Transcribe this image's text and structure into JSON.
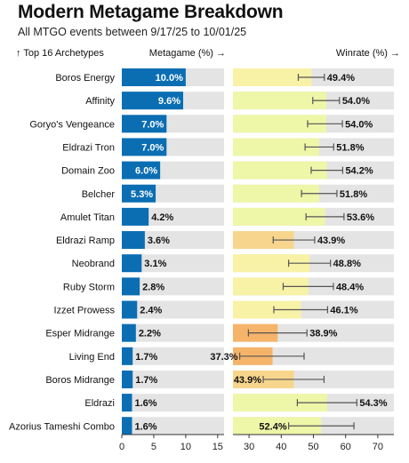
{
  "title": "Modern Metagame Breakdown",
  "subtitle": "All MTGO events between 9/17/25 to 10/01/25",
  "headers": {
    "archetypes": "↑ Top 16 Archetypes",
    "metagame": "Metagame (%) →",
    "winrate": "Winrate (%) →"
  },
  "colors": {
    "meta_bar": "#0b6eb3",
    "track": "#e4e4e4",
    "win_high": "#eef6a8",
    "win_mid": "#f8f2a6",
    "win_low": "#f7d58c",
    "win_lowest": "#f5b46a",
    "error_bar": "#555555"
  },
  "chart_data": [
    {
      "type": "bar",
      "orientation": "horizontal",
      "xlabel": "Metagame (%)",
      "xlim": [
        0,
        16
      ],
      "xticks": [
        0,
        5,
        10,
        15
      ],
      "grid": false,
      "categories": [
        "Boros Energy",
        "Affinity",
        "Goryo's Vengeance",
        "Eldrazi Tron",
        "Domain Zoo",
        "Belcher",
        "Amulet Titan",
        "Eldrazi Ramp",
        "Neobrand",
        "Ruby Storm",
        "Izzet Prowess",
        "Esper Midrange",
        "Living End",
        "Boros Midrange",
        "Eldrazi",
        "Azorius Tameshi Combo"
      ],
      "values": [
        10.0,
        9.6,
        7.0,
        7.0,
        6.0,
        5.3,
        4.2,
        3.6,
        3.1,
        2.8,
        2.4,
        2.2,
        1.7,
        1.7,
        1.6,
        1.6
      ],
      "value_labels": [
        "10.0%",
        "9.6%",
        "7.0%",
        "7.0%",
        "6.0%",
        "5.3%",
        "4.2%",
        "3.6%",
        "3.1%",
        "2.8%",
        "2.4%",
        "2.2%",
        "1.7%",
        "1.7%",
        "1.6%",
        "1.6%"
      ]
    },
    {
      "type": "bar",
      "orientation": "horizontal",
      "xlabel": "Winrate (%)",
      "xlim": [
        25,
        75
      ],
      "xticks": [
        30,
        40,
        50,
        60,
        70
      ],
      "grid": false,
      "categories": [
        "Boros Energy",
        "Affinity",
        "Goryo's Vengeance",
        "Eldrazi Tron",
        "Domain Zoo",
        "Belcher",
        "Amulet Titan",
        "Eldrazi Ramp",
        "Neobrand",
        "Ruby Storm",
        "Izzet Prowess",
        "Esper Midrange",
        "Living End",
        "Boros Midrange",
        "Eldrazi",
        "Azorius Tameshi Combo"
      ],
      "values": [
        49.4,
        54.0,
        54.0,
        51.8,
        54.2,
        51.8,
        53.6,
        43.9,
        48.8,
        48.4,
        46.1,
        38.9,
        37.3,
        43.9,
        54.3,
        52.4
      ],
      "value_labels": [
        "49.4%",
        "54.0%",
        "54.0%",
        "51.8%",
        "54.2%",
        "51.8%",
        "53.6%",
        "43.9%",
        "48.8%",
        "48.4%",
        "46.1%",
        "38.9%",
        "37.3%",
        "43.9%",
        "54.3%",
        "52.4%"
      ],
      "error_low": [
        45.3,
        49.8,
        48.2,
        47.4,
        49.3,
        46.3,
        47.7,
        37.5,
        42.3,
        40.6,
        37.7,
        29.8,
        27.1,
        34.4,
        45.0,
        42.3
      ],
      "error_high": [
        53.4,
        58.1,
        59.0,
        56.3,
        59.1,
        57.3,
        59.5,
        50.4,
        55.3,
        56.2,
        54.4,
        48.0,
        47.1,
        53.3,
        63.5,
        62.6
      ]
    }
  ]
}
